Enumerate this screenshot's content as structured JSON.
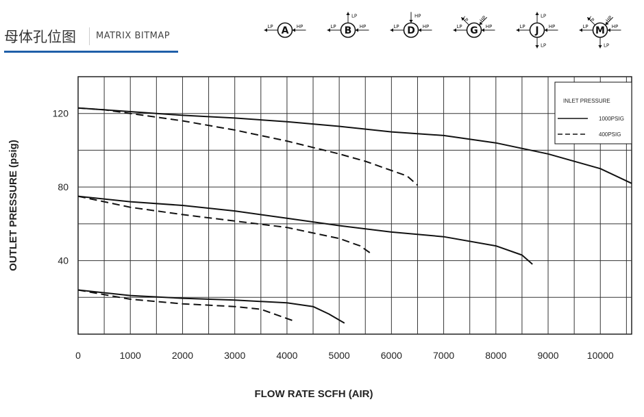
{
  "header": {
    "title_cn": "母体孔位图",
    "title_en": "MATRIX BITMAP"
  },
  "ports": [
    {
      "letter": "A",
      "labels": [
        "LP",
        "HP"
      ]
    },
    {
      "letter": "B",
      "labels": [
        "LP",
        "LP",
        "HP"
      ]
    },
    {
      "letter": "D",
      "labels": [
        "HP",
        "LP",
        "HP"
      ]
    },
    {
      "letter": "G",
      "labels": [
        "LP",
        "HP",
        "LP",
        "HP"
      ]
    },
    {
      "letter": "J",
      "labels": [
        "LP",
        "LP",
        "HP",
        "LP"
      ]
    },
    {
      "letter": "M",
      "labels": [
        "LP",
        "HP",
        "LP",
        "HP",
        "LP"
      ]
    }
  ],
  "colors": {
    "accent": "#1f5fa8",
    "ink": "#111111"
  },
  "chart_data": {
    "type": "line",
    "xlabel": "FLOW RATE SCFH (AIR)",
    "ylabel": "OUTLET PRESSURE (psig)",
    "xlim": [
      0,
      10600
    ],
    "ylim": [
      0,
      140
    ],
    "x_ticks": [
      0,
      1000,
      2000,
      3000,
      4000,
      5000,
      6000,
      7000,
      8000,
      9000,
      10000
    ],
    "y_ticks": [
      40,
      80,
      120
    ],
    "grid": true,
    "legend": {
      "title": "INLET PRESSURE",
      "entries": [
        {
          "label": "1000PSIG",
          "dash": "solid"
        },
        {
          "label": "400PSIG",
          "dash": "dashed"
        }
      ],
      "position": "top-right"
    },
    "series": [
      {
        "name": "1000PSIG",
        "dash": "solid",
        "points": [
          [
            0,
            123
          ],
          [
            1000,
            121
          ],
          [
            2000,
            119
          ],
          [
            3000,
            117.5
          ],
          [
            4000,
            115.5
          ],
          [
            5000,
            113
          ],
          [
            6000,
            110
          ],
          [
            7000,
            108
          ],
          [
            8000,
            104
          ],
          [
            9000,
            98
          ],
          [
            10000,
            90
          ],
          [
            10600,
            82
          ]
        ]
      },
      {
        "name": "400PSIG",
        "dash": "dashed",
        "points": [
          [
            0,
            123
          ],
          [
            500,
            122
          ],
          [
            1000,
            120
          ],
          [
            2000,
            116
          ],
          [
            3000,
            111
          ],
          [
            4000,
            105
          ],
          [
            5000,
            98
          ],
          [
            5500,
            94
          ],
          [
            6000,
            89
          ],
          [
            6300,
            86
          ],
          [
            6500,
            81
          ]
        ]
      },
      {
        "name": "1000PSIG",
        "dash": "solid",
        "points": [
          [
            0,
            75
          ],
          [
            1000,
            72
          ],
          [
            2000,
            70
          ],
          [
            3000,
            67
          ],
          [
            4000,
            63
          ],
          [
            5000,
            59
          ],
          [
            6000,
            55.5
          ],
          [
            7000,
            53
          ],
          [
            8000,
            48
          ],
          [
            8500,
            43
          ],
          [
            8700,
            38
          ]
        ]
      },
      {
        "name": "400PSIG",
        "dash": "dashed",
        "points": [
          [
            0,
            75
          ],
          [
            1000,
            69
          ],
          [
            2000,
            65
          ],
          [
            3000,
            61.5
          ],
          [
            4000,
            58
          ],
          [
            5000,
            52
          ],
          [
            5400,
            48
          ],
          [
            5600,
            44
          ]
        ]
      },
      {
        "name": "1000PSIG",
        "dash": "solid",
        "points": [
          [
            0,
            24
          ],
          [
            1000,
            21
          ],
          [
            2000,
            19.5
          ],
          [
            3000,
            18.5
          ],
          [
            4000,
            17
          ],
          [
            4500,
            15
          ],
          [
            4800,
            11
          ],
          [
            5100,
            6
          ]
        ]
      },
      {
        "name": "400PSIG",
        "dash": "dashed",
        "points": [
          [
            0,
            24
          ],
          [
            1000,
            19
          ],
          [
            2000,
            16.5
          ],
          [
            3000,
            15
          ],
          [
            3500,
            13.5
          ],
          [
            3800,
            10.5
          ],
          [
            4100,
            7.5
          ]
        ]
      }
    ]
  }
}
